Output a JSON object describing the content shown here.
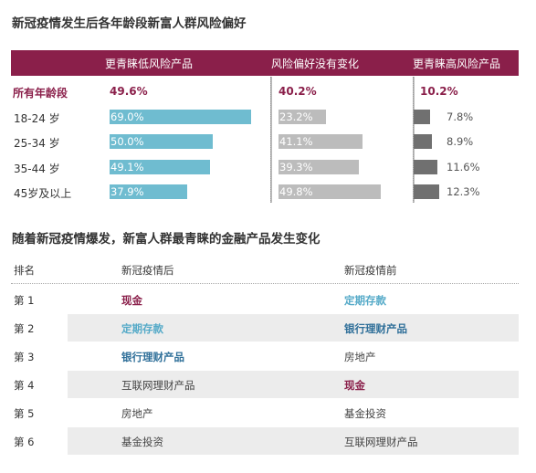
{
  "chart_data": {
    "type": "bar",
    "title": "新冠疫情发生后各年龄段新富人群风险偏好",
    "columns": [
      "更青睐低风险产品",
      "风险偏好没有变化",
      "更青睐高风险产品"
    ],
    "overall": {
      "label": "所有年龄段",
      "values": [
        "49.6%",
        "40.2%",
        "10.2%"
      ]
    },
    "categories": [
      "18-24 岁",
      "25-34 岁",
      "35-44 岁",
      "45岁及以上"
    ],
    "series": [
      {
        "name": "更青睐低风险产品",
        "values": [
          69.0,
          50.0,
          49.1,
          37.9
        ],
        "labels": [
          "69.0%",
          "50.0%",
          "49.1%",
          "37.9%"
        ]
      },
      {
        "name": "风险偏好没有变化",
        "values": [
          23.2,
          41.1,
          39.3,
          49.8
        ],
        "labels": [
          "23.2%",
          "41.1%",
          "39.3%",
          "49.8%"
        ]
      },
      {
        "name": "更青睐高风险产品",
        "values": [
          7.8,
          8.9,
          11.6,
          12.3
        ],
        "labels": [
          "7.8%",
          "8.9%",
          "11.6%",
          "12.3%"
        ]
      }
    ],
    "colors": {
      "header": "#8a1f4a",
      "low": "#6fbcd0",
      "none": "#bcbcbc",
      "high": "#707070"
    }
  },
  "table": {
    "title": "随着新冠疫情爆发，新富人群最青睐的金融产品发生变化",
    "headers": [
      "排名",
      "新冠疫情后",
      "新冠疫情前"
    ],
    "rows": [
      {
        "rank": "第 1",
        "after": "现金",
        "before": "定期存款"
      },
      {
        "rank": "第 2",
        "after": "定期存款",
        "before": "银行理财产品"
      },
      {
        "rank": "第 3",
        "after": "银行理财产品",
        "before": "房地产"
      },
      {
        "rank": "第 4",
        "after": "互联网理财产品",
        "before": "现金"
      },
      {
        "rank": "第 5",
        "after": "房地产",
        "before": "基金投资"
      },
      {
        "rank": "第 6",
        "after": "基金投资",
        "before": "互联网理财产品"
      }
    ]
  }
}
